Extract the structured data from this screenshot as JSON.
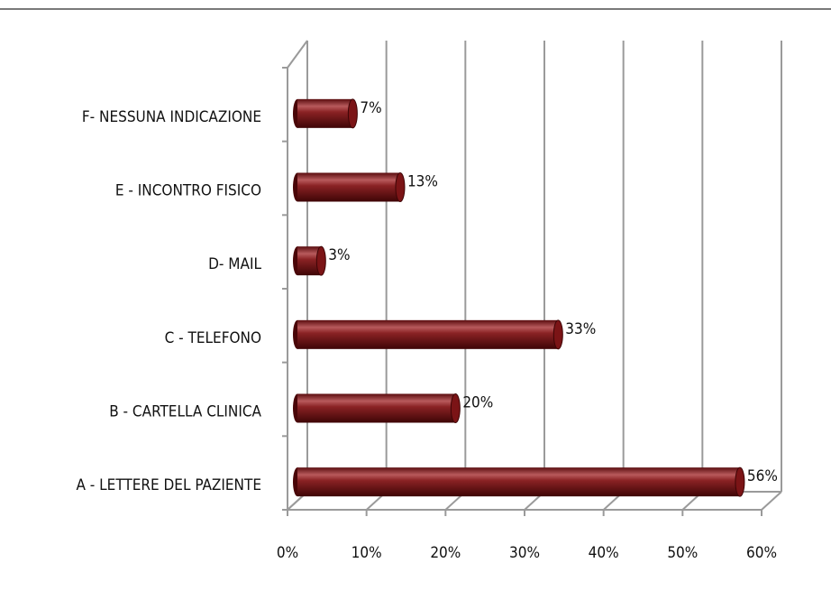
{
  "chart_data": {
    "type": "bar",
    "orientation": "horizontal",
    "categories": [
      "A - LETTERE DEL PAZIENTE",
      "B - CARTELLA CLINICA",
      "C - TELEFONO",
      "D- MAIL",
      "E - INCONTRO FISICO",
      "F- NESSUNA INDICAZIONE"
    ],
    "values": [
      56,
      20,
      33,
      3,
      13,
      7
    ],
    "value_labels": [
      "56%",
      "20%",
      "33%",
      "3%",
      "13%",
      "7%"
    ],
    "color": "#7b1416",
    "xlim": [
      0,
      60
    ],
    "xticks": [
      {
        "value": 0,
        "label": "0%"
      },
      {
        "value": 10,
        "label": "10%"
      },
      {
        "value": 20,
        "label": "20%"
      },
      {
        "value": 30,
        "label": "30%"
      },
      {
        "value": 40,
        "label": "40%"
      },
      {
        "value": 50,
        "label": "50%"
      },
      {
        "value": 60,
        "label": "60%"
      }
    ],
    "grid": true
  }
}
